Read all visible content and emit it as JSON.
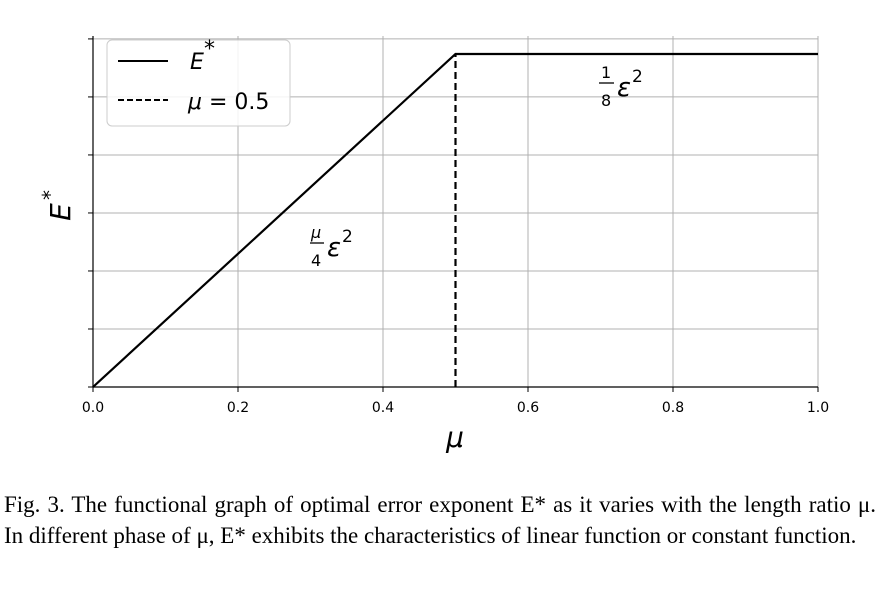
{
  "chart_data": {
    "type": "line",
    "xlabel": "μ",
    "ylabel": "E*",
    "xlim": [
      0.0,
      1.0
    ],
    "ylim": [
      0.0,
      1.0
    ],
    "x_ticks": [
      "0.0",
      "0.2",
      "0.4",
      "0.6",
      "0.8",
      "1.0"
    ],
    "y_tick_count": 7,
    "y_tick_labels_shown": false,
    "grid": true,
    "legend_placement": "top-left",
    "series": [
      {
        "name": "E*",
        "style": "solid",
        "color": "#000000",
        "x": [
          0.0,
          0.5,
          1.0
        ],
        "y": [
          0.0,
          1.0,
          1.0
        ]
      },
      {
        "name": "μ = 0.5",
        "style": "dashed",
        "color": "#000000",
        "x": [
          0.5,
          0.5
        ],
        "y": [
          0.0,
          1.0
        ]
      }
    ],
    "annotations": [
      {
        "text": "μ/4 ε²",
        "near_x": 0.33,
        "near_y": 0.45
      },
      {
        "text": "1/8 ε²",
        "near_x": 0.75,
        "near_y": 0.93
      }
    ]
  },
  "caption": "Fig. 3.  The functional graph of optimal error exponent E* as it varies with the length ratio μ. In different phase of μ, E* exhibits the characteristics of linear function or constant function."
}
